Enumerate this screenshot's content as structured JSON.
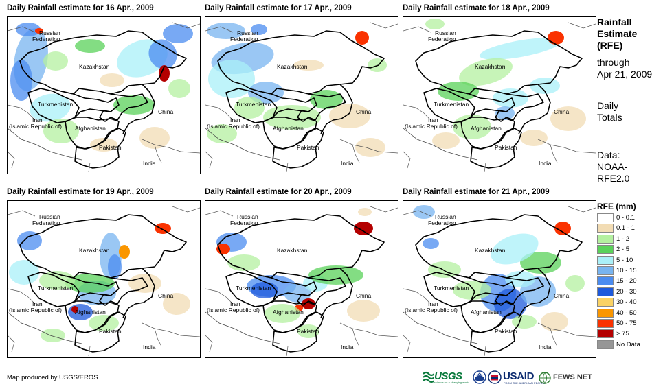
{
  "panels": [
    {
      "title": "Daily Rainfall estimate for 16 Apr., 2009"
    },
    {
      "title": "Daily Rainfall estimate for 17 Apr., 2009"
    },
    {
      "title": "Daily Rainfall estimate for 18 Apr., 2009"
    },
    {
      "title": "Daily Rainfall estimate for 19 Apr., 2009"
    },
    {
      "title": "Daily Rainfall estimate for 20 Apr., 2009"
    },
    {
      "title": "Daily Rainfall estimate for 21 Apr., 2009"
    }
  ],
  "map_labels": {
    "russia_line1": "Russian",
    "russia_line2": "Federation",
    "kazakhstan": "Kazakhstan",
    "turkmenistan": "Turkmenistan",
    "china": "China",
    "iran_line1": "Iran",
    "iran_line2": "(Islamic Republic of)",
    "afghanistan": "Afghanistan",
    "pakistan": "Pakistan",
    "india": "India"
  },
  "side_info": {
    "title_line1": "Rainfall",
    "title_line2": "Estimate",
    "title_line3": "(RFE)",
    "through_line1": "through",
    "through_line2": "Apr 21, 2009",
    "totals_line1": "Daily",
    "totals_line2": "Totals",
    "data_line1": "Data:",
    "data_line2": "NOAA-",
    "data_line3": "RFE2.0"
  },
  "legend": {
    "title": "RFE (mm)",
    "items": [
      {
        "label": "0 - 0.1",
        "color": "#ffffff"
      },
      {
        "label": "0.1 - 1",
        "color": "#f2dcb4"
      },
      {
        "label": "1 - 2",
        "color": "#b4f0a0"
      },
      {
        "label": "2 - 5",
        "color": "#5ad25a"
      },
      {
        "label": "5 - 10",
        "color": "#aaf0f8"
      },
      {
        "label": "10 - 15",
        "color": "#78b4f0"
      },
      {
        "label": "15 - 20",
        "color": "#4b8cf0"
      },
      {
        "label": "20 - 30",
        "color": "#1e5adc"
      },
      {
        "label": "30 - 40",
        "color": "#fad264"
      },
      {
        "label": "40 - 50",
        "color": "#fa9600"
      },
      {
        "label": "50 - 75",
        "color": "#fa3200"
      },
      {
        "label": "> 75",
        "color": "#b40000"
      },
      {
        "label": "No Data",
        "color": "#969696"
      }
    ]
  },
  "credit": "Map produced by USGS/EROS",
  "logos": {
    "usgs": "USGS",
    "usgs_tagline": "science for a changing world",
    "usaid": "USAID",
    "usaid_tagline": "FROM THE AMERICAN PEOPLE",
    "fews": "FEWS NET"
  }
}
